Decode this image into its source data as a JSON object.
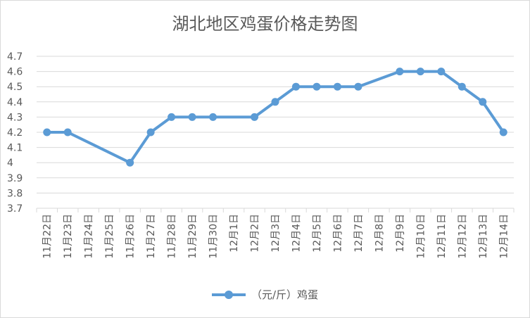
{
  "chart_data": {
    "type": "line",
    "title": "湖北地区鸡蛋价格走势图",
    "categories": [
      "11月22日",
      "11月23日",
      "11月24日",
      "11月25日",
      "11月26日",
      "11月27日",
      "11月28日",
      "11月29日",
      "11月30日",
      "12月1日",
      "12月2日",
      "12月3日",
      "12月4日",
      "12月5日",
      "12月6日",
      "12月7日",
      "12月8日",
      "12月9日",
      "12月10日",
      "12月11日",
      "12月12日",
      "12月13日",
      "12月14日"
    ],
    "series": [
      {
        "name": "（元/斤）鸡蛋",
        "color": "#5b9bd5",
        "values": [
          4.2,
          4.2,
          null,
          null,
          4.0,
          4.2,
          4.3,
          4.3,
          4.3,
          null,
          4.3,
          4.4,
          4.5,
          4.5,
          4.5,
          4.5,
          null,
          4.6,
          4.6,
          4.6,
          4.5,
          4.4,
          4.2
        ]
      }
    ],
    "y_ticks": [
      "3.7",
      "3.8",
      "3.9",
      "4",
      "4.1",
      "4.2",
      "4.3",
      "4.4",
      "4.5",
      "4.6",
      "4.7"
    ],
    "ylim": [
      3.7,
      4.7
    ],
    "xlabel": "",
    "ylabel": "",
    "grid": true,
    "legend": "bottom",
    "gap_handling": "connect"
  }
}
